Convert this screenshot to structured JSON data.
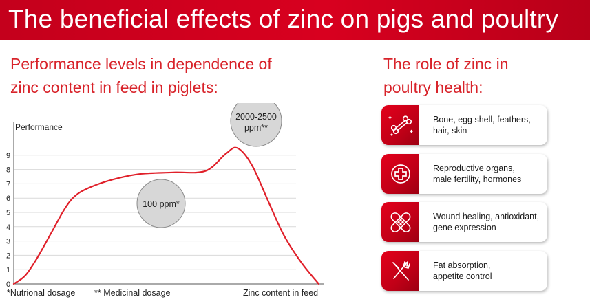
{
  "header": {
    "title": "The beneficial effects of zinc on pigs and poultry"
  },
  "left_section": {
    "subtitle_line1": "Performance levels in dependence of",
    "subtitle_line2": "zinc content in feed in piglets:"
  },
  "right_section": {
    "subtitle_line1": "The role of zinc in",
    "subtitle_line2": "poultry health:",
    "cards": [
      {
        "icon": "bone-icon",
        "line1": "Bone, egg shell, feathers,",
        "line2": "hair, skin"
      },
      {
        "icon": "medical-cross-icon",
        "line1": "Reproductive organs,",
        "line2": "male fertility, hormones"
      },
      {
        "icon": "bandage-icon",
        "line1": "Wound healing, antioxidant,",
        "line2": "gene expression"
      },
      {
        "icon": "fork-knife-icon",
        "line1": "Fat absorption,",
        "line2": "appetite control"
      }
    ]
  },
  "colors": {
    "accent": "#d8001f",
    "curve": "#e0202a",
    "bubble": "#d7d7d7",
    "axis": "#555555"
  },
  "chart_data": {
    "type": "line",
    "title": "",
    "ylabel": "Performance",
    "xlabel": "Zinc content in feed",
    "ylim": [
      0,
      10
    ],
    "y_ticks": [
      "0",
      "1",
      "2",
      "3",
      "4",
      "5",
      "6",
      "7",
      "8",
      "9"
    ],
    "grid": true,
    "series": [
      {
        "values": [
          {
            "x": 0,
            "y": 0
          },
          {
            "x": 4,
            "y": 0.6
          },
          {
            "x": 8,
            "y": 1.8
          },
          {
            "x": 13,
            "y": 3.6
          },
          {
            "x": 18,
            "y": 5.4
          },
          {
            "x": 22,
            "y": 6.3
          },
          {
            "x": 28,
            "y": 6.9
          },
          {
            "x": 36,
            "y": 7.4
          },
          {
            "x": 44,
            "y": 7.7
          },
          {
            "x": 55,
            "y": 7.8
          },
          {
            "x": 66,
            "y": 7.9
          },
          {
            "x": 73,
            "y": 9.1
          },
          {
            "x": 77,
            "y": 9.5
          },
          {
            "x": 82,
            "y": 8.3
          },
          {
            "x": 88,
            "y": 5.6
          },
          {
            "x": 93,
            "y": 3.4
          },
          {
            "x": 99,
            "y": 1.5
          },
          {
            "x": 105,
            "y": 0
          }
        ]
      }
    ],
    "annotations": [
      {
        "label": "100 ppm*"
      },
      {
        "label_line1": "2000-2500",
        "label_line2": "ppm**"
      }
    ],
    "footnotes": [
      "*Nutrional  dosage",
      "** Medicinal dosage"
    ]
  }
}
